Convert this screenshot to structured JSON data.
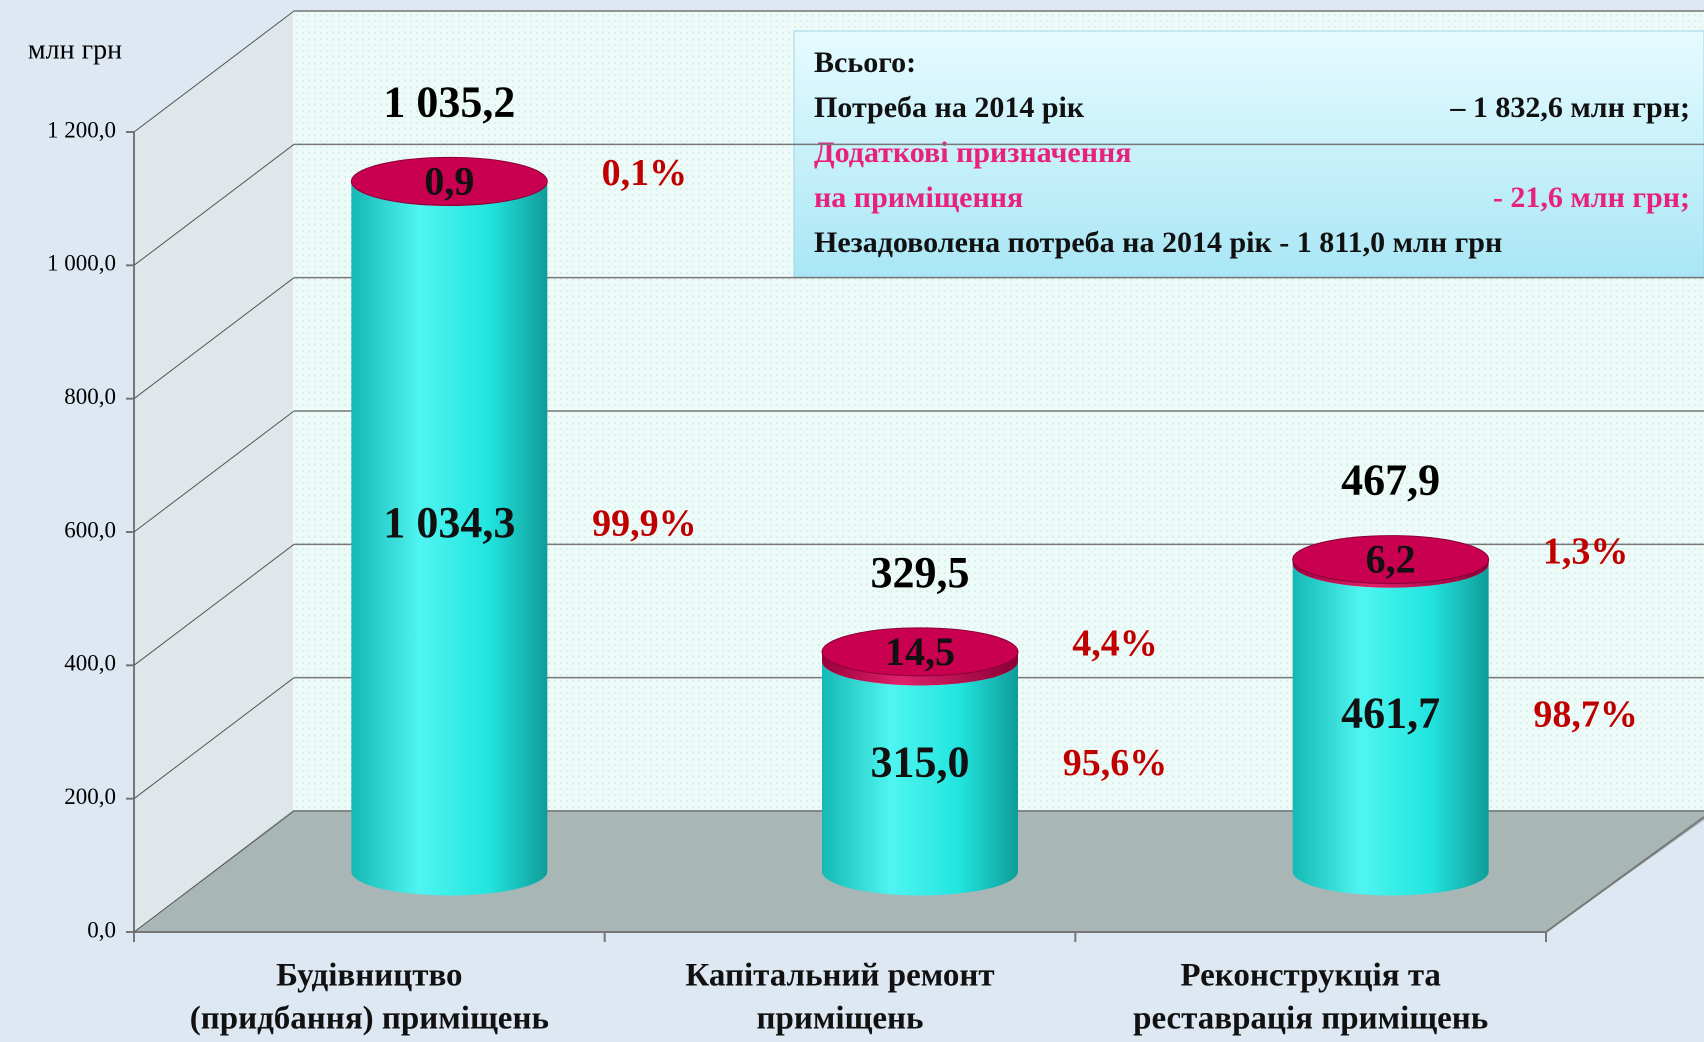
{
  "chart_data": {
    "type": "cylinder-stacked",
    "unit_label": "млн грн",
    "categories": [
      [
        "Будівництво",
        "(придбання) приміщень"
      ],
      [
        "Капітальний ремонт",
        "приміщень"
      ],
      [
        "Реконструкція та",
        "реставрація приміщень"
      ]
    ],
    "series": [
      {
        "color": "#22e5e0",
        "values": [
          1034.3,
          315.0,
          461.7
        ],
        "value_labels": [
          "1 034,3",
          "315,0",
          "461,7"
        ],
        "percents": [
          99.9,
          95.6,
          98.7
        ],
        "percent_labels": [
          "99,9%",
          "95,6%",
          "98,7%"
        ]
      },
      {
        "color": "#c8004f",
        "values": [
          0.9,
          14.5,
          6.2
        ],
        "value_labels": [
          "0,9",
          "14,5",
          "6,2"
        ],
        "percents": [
          0.1,
          4.4,
          1.3
        ],
        "percent_labels": [
          "0,1%",
          "4,4%",
          "1,3%"
        ]
      }
    ],
    "totals": [
      1035.2,
      329.5,
      467.9
    ],
    "total_labels": [
      "1 035,2",
      "329,5",
      "467,9"
    ],
    "ylim": [
      0,
      1200
    ],
    "yticks": [
      {
        "value": 0,
        "label": "0,0"
      },
      {
        "value": 200,
        "label": "200,0"
      },
      {
        "value": 400,
        "label": "400,0"
      },
      {
        "value": 600,
        "label": "600,0"
      },
      {
        "value": 800,
        "label": "800,0"
      },
      {
        "value": 1000,
        "label": "1 000,0"
      },
      {
        "value": 1200,
        "label": "1 200,0"
      }
    ],
    "grid": true,
    "annotation": {
      "lines": [
        {
          "left": "Всього:"
        },
        {
          "left": "Потреба на 2014 рік",
          "right": "– 1 832,6 млн грн;"
        },
        {
          "left": "Додаткові призначення"
        },
        {
          "left": "на приміщення",
          "right": "-  21,6 млн грн;"
        },
        {
          "left": "Незадоволена потреба на 2014 рік - 1 811,0 млн грн"
        }
      ]
    }
  }
}
